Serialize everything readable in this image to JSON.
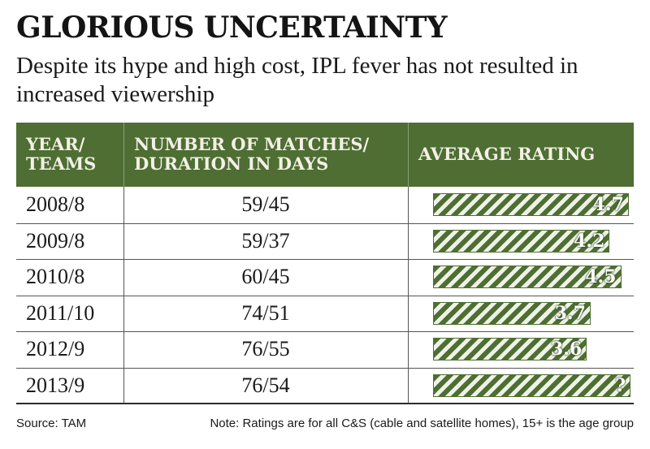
{
  "chart_data": {
    "type": "table",
    "title": "GLORIOUS UNCERTAINTY",
    "subtitle": "Despite its hype and high cost, IPL fever has not resulted in increased viewership",
    "columns": [
      "YEAR/\nTEAMS",
      "NUMBER OF MATCHES/\nDURATION IN DAYS",
      "AVERAGE RATING"
    ],
    "rows": [
      {
        "year_teams": "2008/8",
        "matches_days": "59/45",
        "rating": 4.7,
        "rating_label": "4.7"
      },
      {
        "year_teams": "2009/8",
        "matches_days": "59/37",
        "rating": 4.2,
        "rating_label": "4.2"
      },
      {
        "year_teams": "2010/8",
        "matches_days": "60/45",
        "rating": 4.5,
        "rating_label": "4.5"
      },
      {
        "year_teams": "2011/10",
        "matches_days": "74/51",
        "rating": 3.7,
        "rating_label": "3.7"
      },
      {
        "year_teams": "2012/9",
        "matches_days": "76/55",
        "rating": 3.6,
        "rating_label": "3.6"
      },
      {
        "year_teams": "2013/9",
        "matches_days": "76/54",
        "rating": null,
        "rating_label": "?"
      }
    ],
    "bar_color": "#4e6e33",
    "header_color": "#4e6e33"
  },
  "footer": {
    "source": "Source: TAM",
    "note": "Note: Ratings are for all C&S (cable and satellite homes), 15+ is the age group"
  }
}
